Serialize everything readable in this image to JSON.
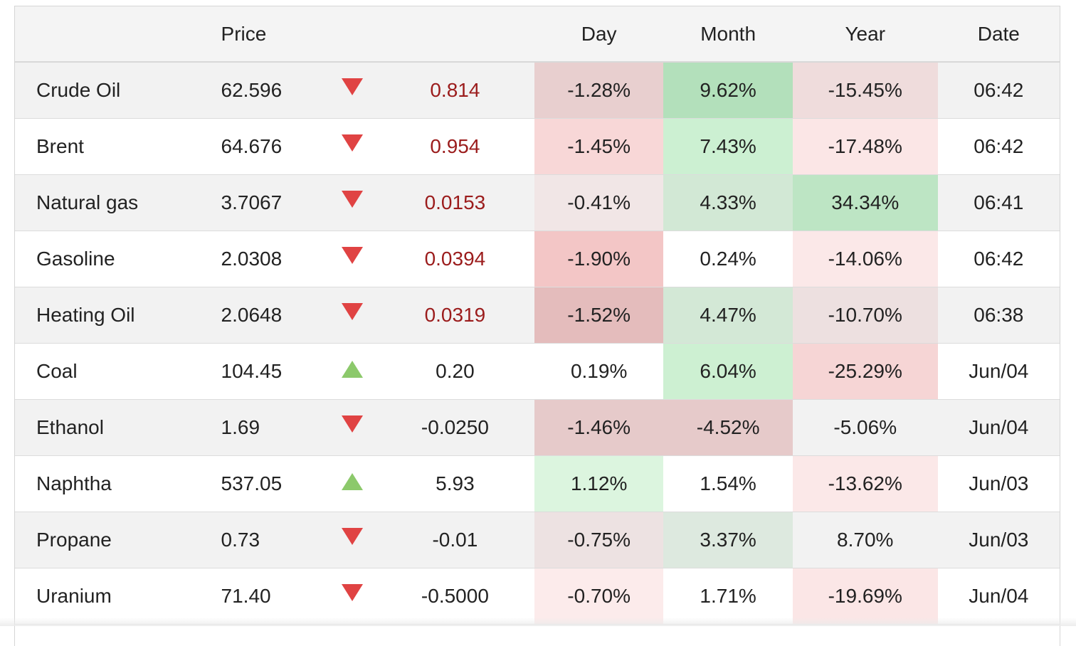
{
  "headers": {
    "name": "",
    "price": "Price",
    "arrow": "",
    "change": "",
    "day": "Day",
    "month": "Month",
    "year": "Year",
    "date": "Date"
  },
  "rows": [
    {
      "name": "Crude Oil",
      "price": "62.596",
      "direction": "down",
      "change": "0.814",
      "change_red": true,
      "day": "-1.28%",
      "month": "9.62%",
      "year": "-15.45%",
      "date": "06:42",
      "day_bg": "#e8cfcf",
      "month_bg": "#b3e0bb",
      "year_bg": "#efdcdc"
    },
    {
      "name": "Brent",
      "price": "64.676",
      "direction": "down",
      "change": "0.954",
      "change_red": true,
      "day": "-1.45%",
      "month": "7.43%",
      "year": "-17.48%",
      "date": "06:42",
      "day_bg": "#f8d7d7",
      "month_bg": "#ccf0d2",
      "year_bg": "#fbe6e6"
    },
    {
      "name": "Natural gas",
      "price": "3.7067",
      "direction": "down",
      "change": "0.0153",
      "change_red": true,
      "day": "-0.41%",
      "month": "4.33%",
      "year": "34.34%",
      "date": "06:41",
      "day_bg": "#f1e6e6",
      "month_bg": "#d2e8d5",
      "year_bg": "#bde5c4"
    },
    {
      "name": "Gasoline",
      "price": "2.0308",
      "direction": "down",
      "change": "0.0394",
      "change_red": true,
      "day": "-1.90%",
      "month": "0.24%",
      "year": "-14.06%",
      "date": "06:42",
      "day_bg": "#f3c6c6",
      "month_bg": "#ffffff",
      "year_bg": "#fbe8e8"
    },
    {
      "name": "Heating Oil",
      "price": "2.0648",
      "direction": "down",
      "change": "0.0319",
      "change_red": true,
      "day": "-1.52%",
      "month": "4.47%",
      "year": "-10.70%",
      "date": "06:38",
      "day_bg": "#e4bcbc",
      "month_bg": "#d3e8d6",
      "year_bg": "#ede0e0"
    },
    {
      "name": "Coal",
      "price": "104.45",
      "direction": "up",
      "change": "0.20",
      "change_red": false,
      "day": "0.19%",
      "month": "6.04%",
      "year": "-25.29%",
      "date": "Jun/04",
      "day_bg": "#ffffff",
      "month_bg": "#cdf0d2",
      "year_bg": "#f6d5d5"
    },
    {
      "name": "Ethanol",
      "price": "1.69",
      "direction": "down",
      "change": "-0.0250",
      "change_red": false,
      "day": "-1.46%",
      "month": "-4.52%",
      "year": "-5.06%",
      "date": "Jun/04",
      "day_bg": "#e6caca",
      "month_bg": "#e6caca",
      "year_bg": "#f2f2f2"
    },
    {
      "name": "Naphtha",
      "price": "537.05",
      "direction": "up",
      "change": "5.93",
      "change_red": false,
      "day": "1.12%",
      "month": "1.54%",
      "year": "-13.62%",
      "date": "Jun/03",
      "day_bg": "#dcf5df",
      "month_bg": "#ffffff",
      "year_bg": "#fbe8e8"
    },
    {
      "name": "Propane",
      "price": "0.73",
      "direction": "down",
      "change": "-0.01",
      "change_red": false,
      "day": "-0.75%",
      "month": "3.37%",
      "year": "8.70%",
      "date": "Jun/03",
      "day_bg": "#ede2e2",
      "month_bg": "#dde9df",
      "year_bg": "#f2f2f2"
    },
    {
      "name": "Uranium",
      "price": "71.40",
      "direction": "down",
      "change": "-0.5000",
      "change_red": false,
      "day": "-0.70%",
      "month": "1.71%",
      "year": "-19.69%",
      "date": "Jun/04",
      "day_bg": "#fcebeb",
      "month_bg": "#ffffff",
      "year_bg": "#fbe6e6"
    }
  ]
}
